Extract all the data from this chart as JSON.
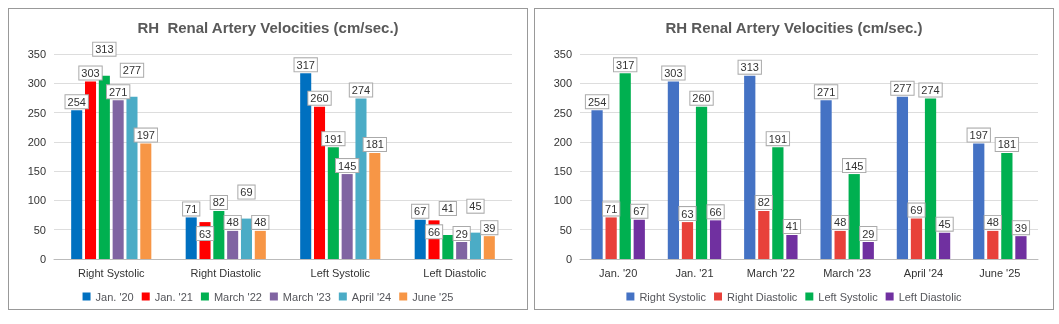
{
  "chart_data": [
    {
      "type": "bar",
      "title": "RH  Renal Artery Velocities (cm/sec.)",
      "categories": [
        "Right Systolic",
        "Right Diastolic",
        "Left Systolic",
        "Left Diastolic"
      ],
      "series": [
        {
          "name": "Jan. '20",
          "color": "#0070c0",
          "values": [
            254,
            71,
            317,
            67
          ]
        },
        {
          "name": "Jan. '21",
          "color": "#ff0000",
          "values": [
            303,
            63,
            260,
            66
          ]
        },
        {
          "name": "March '22",
          "color": "#00b050",
          "values": [
            313,
            82,
            191,
            41
          ]
        },
        {
          "name": "March '23",
          "color": "#8064a2",
          "values": [
            271,
            48,
            145,
            29
          ]
        },
        {
          "name": "April '24",
          "color": "#4bacc6",
          "values": [
            277,
            69,
            274,
            45
          ]
        },
        {
          "name": "June '25",
          "color": "#f79646",
          "values": [
            197,
            48,
            181,
            39
          ]
        }
      ],
      "ylim": [
        0,
        350
      ],
      "yticks": [
        0,
        50,
        100,
        150,
        200,
        250,
        300,
        350
      ],
      "grid": "y",
      "legend": "bottom",
      "data_labels": true
    },
    {
      "type": "bar",
      "title": "RH Renal Artery Velocities (cm/sec.)",
      "categories": [
        "Jan. '20",
        "Jan. '21",
        "March '22",
        "March '23",
        "April '24",
        "June '25"
      ],
      "series": [
        {
          "name": "Right Systolic",
          "color": "#4472c4",
          "values": [
            254,
            303,
            313,
            271,
            277,
            197
          ]
        },
        {
          "name": "Right Diastolic",
          "color": "#e8413a",
          "values": [
            71,
            63,
            82,
            48,
            69,
            48
          ]
        },
        {
          "name": "Left Systolic",
          "color": "#00b050",
          "values": [
            317,
            260,
            191,
            145,
            274,
            181
          ]
        },
        {
          "name": "Left Diastolic",
          "color": "#7030a0",
          "values": [
            67,
            66,
            41,
            29,
            45,
            39
          ]
        }
      ],
      "ylim": [
        0,
        350
      ],
      "yticks": [
        0,
        50,
        100,
        150,
        200,
        250,
        300,
        350
      ],
      "grid": "y",
      "legend": "bottom",
      "data_labels": true
    }
  ]
}
